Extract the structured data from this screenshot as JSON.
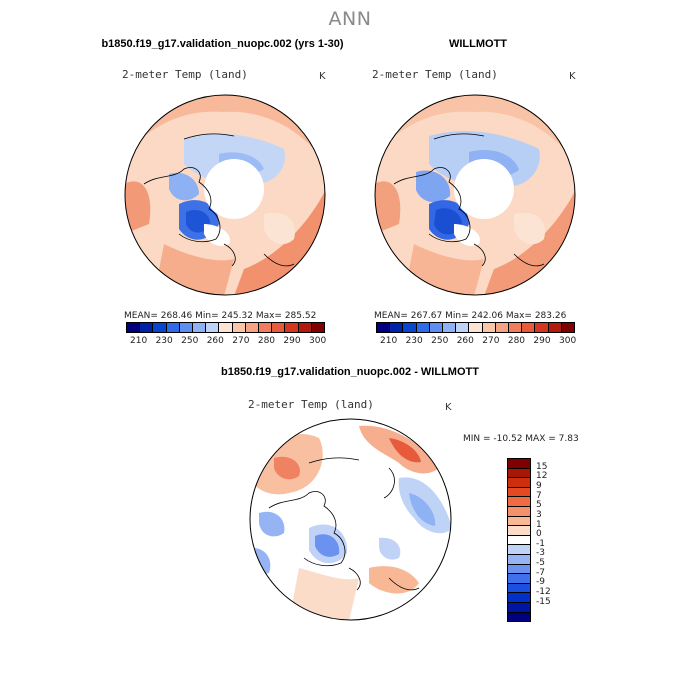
{
  "title": "ANN",
  "panels": [
    {
      "title": "b1850.f19_g17.validation_nuopc.002 (yrs 1-30)",
      "variable": "2-meter Temp (land)",
      "units": "K",
      "stats": "MEAN= 268.46   Min= 245.32   Max= 285.52"
    },
    {
      "title": "WILLMOTT",
      "variable": "2-meter Temp (land)",
      "units": "K",
      "stats": "MEAN= 267.67   Min= 242.06   Max= 283.26"
    },
    {
      "title": "b1850.f19_g17.validation_nuopc.002 - WILLMOTT",
      "variable": "2-meter Temp (land)",
      "units": "K",
      "stats": "MIN = -10.52  MAX =    7.83"
    }
  ],
  "colors": {
    "abs_scale": [
      "#00007f",
      "#0022a8",
      "#0a45d0",
      "#2f6ae8",
      "#5d8ff0",
      "#8fb2f4",
      "#bfd3f6",
      "#fbe4d4",
      "#f8c6a8",
      "#f5a383",
      "#f07e5e",
      "#e85a3c",
      "#d53620",
      "#b21a0e",
      "#7f0000"
    ],
    "diff_scale": [
      "#00007f",
      "#0016a0",
      "#0030c8",
      "#1a4fe0",
      "#3f70ea",
      "#6b92f0",
      "#96b4f4",
      "#c0d2f6",
      "#ffffff",
      "#fbdcc8",
      "#f8b896",
      "#f59168",
      "#f06b42",
      "#e44a22",
      "#cc2e0e",
      "#a81606",
      "#7f0000"
    ]
  },
  "chart_data": [
    {
      "type": "heatmap",
      "title": "b1850.f19_g17.validation_nuopc.002 (yrs 1-30)",
      "variable": "2-meter Temp (land)",
      "units": "K",
      "projection": "north polar stereographic",
      "colorbar_ticks": [
        "210",
        "230",
        "250",
        "260",
        "270",
        "280",
        "290",
        "300"
      ],
      "mean": 268.46,
      "min": 245.32,
      "max": 285.52
    },
    {
      "type": "heatmap",
      "title": "WILLMOTT",
      "variable": "2-meter Temp (land)",
      "units": "K",
      "projection": "north polar stereographic",
      "colorbar_ticks": [
        "210",
        "230",
        "250",
        "260",
        "270",
        "280",
        "290",
        "300"
      ],
      "mean": 267.67,
      "min": 242.06,
      "max": 283.26
    },
    {
      "type": "heatmap",
      "title": "b1850.f19_g17.validation_nuopc.002 - WILLMOTT",
      "variable": "2-meter Temp (land)",
      "units": "K",
      "projection": "north polar stereographic",
      "colorbar_ticks": [
        "15",
        "12",
        "9",
        "7",
        "5",
        "3",
        "1",
        "0",
        "-1",
        "-3",
        "-5",
        "-7",
        "-9",
        "-12",
        "-15"
      ],
      "min": -10.52,
      "max": 7.83
    }
  ]
}
